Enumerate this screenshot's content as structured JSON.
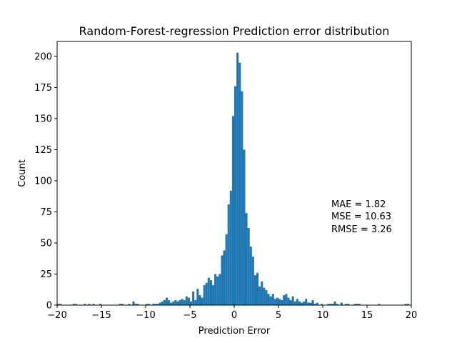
{
  "chart_data": {
    "type": "bar",
    "title": "Random-Forest-regression Prediction error distribution",
    "xlabel": "Prediction Error",
    "ylabel": "Count",
    "xlim": [
      -20,
      20
    ],
    "ylim": [
      0,
      212
    ],
    "xticks": [
      -20,
      -15,
      -10,
      -5,
      0,
      5,
      10,
      15,
      20
    ],
    "yticks": [
      0,
      25,
      50,
      75,
      100,
      125,
      150,
      175,
      200
    ],
    "grid": false,
    "bar_color": "#1f77b4",
    "bin_width": 0.25,
    "bins": [
      {
        "x": -20.0,
        "count": 1
      },
      {
        "x": -19.75,
        "count": 1
      },
      {
        "x": -18.25,
        "count": 1
      },
      {
        "x": -18.0,
        "count": 1
      },
      {
        "x": -17.0,
        "count": 1
      },
      {
        "x": -16.5,
        "count": 1
      },
      {
        "x": -16.0,
        "count": 1
      },
      {
        "x": -15.25,
        "count": 1
      },
      {
        "x": -13.0,
        "count": 1
      },
      {
        "x": -12.75,
        "count": 1
      },
      {
        "x": -12.0,
        "count": 1
      },
      {
        "x": -11.5,
        "count": 3
      },
      {
        "x": -11.25,
        "count": 1
      },
      {
        "x": -11.0,
        "count": 1
      },
      {
        "x": -10.0,
        "count": 1
      },
      {
        "x": -9.75,
        "count": 1
      },
      {
        "x": -9.25,
        "count": 1
      },
      {
        "x": -9.0,
        "count": 1
      },
      {
        "x": -8.75,
        "count": 1
      },
      {
        "x": -8.5,
        "count": 2
      },
      {
        "x": -8.25,
        "count": 3
      },
      {
        "x": -8.0,
        "count": 4
      },
      {
        "x": -7.75,
        "count": 6
      },
      {
        "x": -7.5,
        "count": 4
      },
      {
        "x": -7.25,
        "count": 2
      },
      {
        "x": -7.0,
        "count": 3
      },
      {
        "x": -6.75,
        "count": 4
      },
      {
        "x": -6.5,
        "count": 3
      },
      {
        "x": -6.25,
        "count": 4
      },
      {
        "x": -6.0,
        "count": 5
      },
      {
        "x": -5.75,
        "count": 4
      },
      {
        "x": -5.5,
        "count": 7
      },
      {
        "x": -5.25,
        "count": 6
      },
      {
        "x": -5.0,
        "count": 3
      },
      {
        "x": -4.75,
        "count": 11
      },
      {
        "x": -4.5,
        "count": 4
      },
      {
        "x": -4.25,
        "count": 13
      },
      {
        "x": -4.0,
        "count": 8
      },
      {
        "x": -3.75,
        "count": 6
      },
      {
        "x": -3.5,
        "count": 16
      },
      {
        "x": -3.25,
        "count": 18
      },
      {
        "x": -3.0,
        "count": 22
      },
      {
        "x": -2.75,
        "count": 20
      },
      {
        "x": -2.5,
        "count": 16
      },
      {
        "x": -2.25,
        "count": 25
      },
      {
        "x": -2.0,
        "count": 23
      },
      {
        "x": -1.75,
        "count": 25
      },
      {
        "x": -1.5,
        "count": 40
      },
      {
        "x": -1.25,
        "count": 44
      },
      {
        "x": -1.0,
        "count": 57
      },
      {
        "x": -0.75,
        "count": 81
      },
      {
        "x": -0.5,
        "count": 92
      },
      {
        "x": -0.25,
        "count": 152
      },
      {
        "x": 0.0,
        "count": 176
      },
      {
        "x": 0.25,
        "count": 203
      },
      {
        "x": 0.5,
        "count": 195
      },
      {
        "x": 0.75,
        "count": 172
      },
      {
        "x": 1.0,
        "count": 125
      },
      {
        "x": 1.25,
        "count": 74
      },
      {
        "x": 1.5,
        "count": 62
      },
      {
        "x": 1.75,
        "count": 47
      },
      {
        "x": 2.0,
        "count": 39
      },
      {
        "x": 2.25,
        "count": 24
      },
      {
        "x": 2.5,
        "count": 26
      },
      {
        "x": 2.75,
        "count": 15
      },
      {
        "x": 3.0,
        "count": 19
      },
      {
        "x": 3.25,
        "count": 14
      },
      {
        "x": 3.5,
        "count": 12
      },
      {
        "x": 3.75,
        "count": 9
      },
      {
        "x": 4.0,
        "count": 7
      },
      {
        "x": 4.25,
        "count": 9
      },
      {
        "x": 4.5,
        "count": 5
      },
      {
        "x": 4.75,
        "count": 6
      },
      {
        "x": 5.0,
        "count": 5
      },
      {
        "x": 5.25,
        "count": 4
      },
      {
        "x": 5.5,
        "count": 8
      },
      {
        "x": 5.75,
        "count": 9
      },
      {
        "x": 6.0,
        "count": 6
      },
      {
        "x": 6.25,
        "count": 4
      },
      {
        "x": 6.5,
        "count": 7
      },
      {
        "x": 6.75,
        "count": 3
      },
      {
        "x": 7.0,
        "count": 5
      },
      {
        "x": 7.25,
        "count": 3
      },
      {
        "x": 7.5,
        "count": 2
      },
      {
        "x": 7.75,
        "count": 3
      },
      {
        "x": 8.0,
        "count": 5
      },
      {
        "x": 8.25,
        "count": 2
      },
      {
        "x": 8.5,
        "count": 2
      },
      {
        "x": 8.75,
        "count": 4
      },
      {
        "x": 9.0,
        "count": 1
      },
      {
        "x": 9.25,
        "count": 2
      },
      {
        "x": 9.75,
        "count": 1
      },
      {
        "x": 10.5,
        "count": 1
      },
      {
        "x": 10.75,
        "count": 1
      },
      {
        "x": 11.0,
        "count": 1
      },
      {
        "x": 11.25,
        "count": 3
      },
      {
        "x": 11.5,
        "count": 1
      },
      {
        "x": 12.0,
        "count": 2
      },
      {
        "x": 12.5,
        "count": 1
      },
      {
        "x": 12.75,
        "count": 1
      },
      {
        "x": 13.5,
        "count": 1
      },
      {
        "x": 13.75,
        "count": 1
      },
      {
        "x": 14.0,
        "count": 1
      },
      {
        "x": 16.25,
        "count": 1
      },
      {
        "x": 19.25,
        "count": 1
      },
      {
        "x": 19.5,
        "count": 1
      }
    ],
    "annotations": {
      "mae": "MAE = 1.82",
      "mse": "MSE = 10.63",
      "rmse": "RMSE = 3.26"
    }
  }
}
